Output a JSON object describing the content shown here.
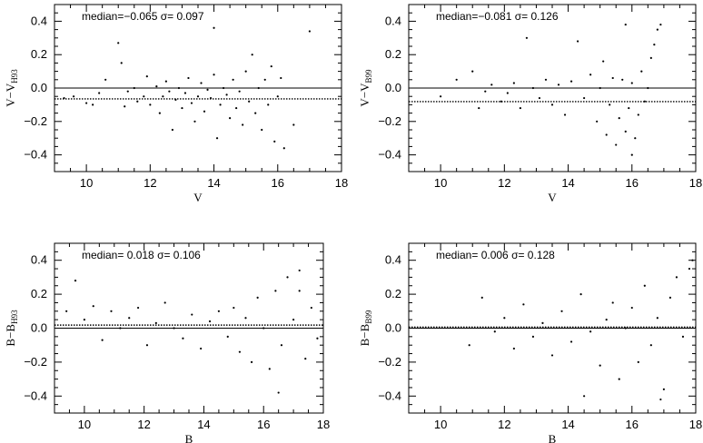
{
  "chart_data": [
    {
      "type": "scatter",
      "xlabel": "V",
      "ylabel": "V−V",
      "ylabel_sub": "H93",
      "stats": "median=−0.065   σ=  0.097",
      "median": -0.065,
      "sigma": 0.097,
      "xlim": [
        9,
        18
      ],
      "ylim": [
        -0.5,
        0.5
      ],
      "xticks": [
        10,
        12,
        14,
        16,
        18
      ],
      "yticks": [
        -0.4,
        -0.2,
        0.0,
        0.2,
        0.4
      ],
      "xtick_labels": [
        "10",
        "12",
        "14",
        "16",
        "18"
      ],
      "ytick_labels": [
        "−0.4",
        "−0.2",
        "0.0",
        "0.2",
        "0.4"
      ],
      "points": [
        [
          9.3,
          -0.06
        ],
        [
          9.6,
          -0.05
        ],
        [
          10.0,
          -0.09
        ],
        [
          10.2,
          -0.1
        ],
        [
          10.4,
          -0.03
        ],
        [
          10.6,
          0.05
        ],
        [
          11.0,
          0.27
        ],
        [
          11.1,
          0.15
        ],
        [
          11.2,
          -0.11
        ],
        [
          11.3,
          -0.02
        ],
        [
          11.5,
          0.0
        ],
        [
          11.6,
          -0.08
        ],
        [
          11.8,
          -0.05
        ],
        [
          11.9,
          0.07
        ],
        [
          12.0,
          -0.1
        ],
        [
          12.2,
          0.01
        ],
        [
          12.3,
          -0.15
        ],
        [
          12.4,
          -0.05
        ],
        [
          12.5,
          0.04
        ],
        [
          12.6,
          -0.02
        ],
        [
          12.7,
          -0.25
        ],
        [
          12.8,
          -0.07
        ],
        [
          12.9,
          0.0
        ],
        [
          13.0,
          -0.12
        ],
        [
          13.1,
          -0.03
        ],
        [
          13.2,
          0.06
        ],
        [
          13.3,
          -0.09
        ],
        [
          13.4,
          -0.2
        ],
        [
          13.5,
          -0.05
        ],
        [
          13.6,
          0.03
        ],
        [
          13.7,
          -0.14
        ],
        [
          13.8,
          -0.01
        ],
        [
          13.9,
          -0.06
        ],
        [
          14.0,
          0.08
        ],
        [
          14.1,
          -0.3
        ],
        [
          14.2,
          -0.1
        ],
        [
          14.3,
          0.0
        ],
        [
          14.4,
          -0.04
        ],
        [
          14.5,
          -0.18
        ],
        [
          14.6,
          0.05
        ],
        [
          14.7,
          -0.12
        ],
        [
          14.8,
          -0.02
        ],
        [
          14.9,
          -0.22
        ],
        [
          15.0,
          0.1
        ],
        [
          15.1,
          -0.08
        ],
        [
          15.2,
          0.2
        ],
        [
          15.3,
          -0.15
        ],
        [
          15.4,
          0.0
        ],
        [
          15.5,
          -0.25
        ],
        [
          15.6,
          0.05
        ],
        [
          15.7,
          -0.1
        ],
        [
          15.8,
          0.13
        ],
        [
          15.9,
          -0.32
        ],
        [
          16.0,
          -0.05
        ],
        [
          16.1,
          0.06
        ],
        [
          16.2,
          -0.36
        ],
        [
          16.5,
          -0.22
        ],
        [
          17.0,
          0.34
        ],
        [
          14.0,
          0.36
        ]
      ]
    },
    {
      "type": "scatter",
      "xlabel": "V",
      "ylabel": "V−V",
      "ylabel_sub": "B99",
      "stats": "median=−0.081   σ=  0.126",
      "median": -0.081,
      "sigma": 0.126,
      "xlim": [
        9,
        18
      ],
      "ylim": [
        -0.5,
        0.5
      ],
      "xticks": [
        10,
        12,
        14,
        16,
        18
      ],
      "yticks": [
        -0.4,
        -0.2,
        0.0,
        0.2,
        0.4
      ],
      "xtick_labels": [
        "10",
        "12",
        "14",
        "16",
        "18"
      ],
      "ytick_labels": [
        "−0.4",
        "−0.2",
        "0.0",
        "0.2",
        "0.4"
      ],
      "points": [
        [
          10.0,
          -0.05
        ],
        [
          10.5,
          0.05
        ],
        [
          11.0,
          0.1
        ],
        [
          11.2,
          -0.12
        ],
        [
          11.4,
          -0.02
        ],
        [
          11.6,
          0.02
        ],
        [
          11.9,
          -0.08
        ],
        [
          12.1,
          -0.03
        ],
        [
          12.3,
          0.03
        ],
        [
          12.5,
          -0.12
        ],
        [
          12.7,
          0.3
        ],
        [
          12.9,
          0.0
        ],
        [
          13.1,
          -0.06
        ],
        [
          13.3,
          0.05
        ],
        [
          13.5,
          -0.1
        ],
        [
          13.7,
          0.02
        ],
        [
          13.9,
          -0.16
        ],
        [
          14.1,
          0.04
        ],
        [
          14.3,
          0.28
        ],
        [
          14.5,
          -0.06
        ],
        [
          14.7,
          0.08
        ],
        [
          14.9,
          -0.2
        ],
        [
          15.0,
          0.0
        ],
        [
          15.1,
          0.16
        ],
        [
          15.2,
          -0.28
        ],
        [
          15.3,
          -0.1
        ],
        [
          15.4,
          0.06
        ],
        [
          15.5,
          -0.34
        ],
        [
          15.6,
          -0.18
        ],
        [
          15.7,
          0.05
        ],
        [
          15.8,
          -0.26
        ],
        [
          15.9,
          -0.12
        ],
        [
          16.0,
          0.03
        ],
        [
          16.1,
          -0.3
        ],
        [
          16.2,
          -0.16
        ],
        [
          16.3,
          0.1
        ],
        [
          16.4,
          -0.08
        ],
        [
          16.5,
          0.0
        ],
        [
          16.6,
          0.18
        ],
        [
          16.7,
          0.26
        ],
        [
          16.8,
          0.35
        ],
        [
          16.9,
          0.38
        ],
        [
          15.8,
          0.38
        ],
        [
          16.0,
          -0.4
        ]
      ]
    },
    {
      "type": "scatter",
      "xlabel": "B",
      "ylabel": "B−B",
      "ylabel_sub": "H93",
      "stats": "median=  0.018   σ=  0.106",
      "median": 0.018,
      "sigma": 0.106,
      "xlim": [
        9,
        18
      ],
      "ylim": [
        -0.5,
        0.5
      ],
      "xticks": [
        10,
        12,
        14,
        16,
        18
      ],
      "yticks": [
        -0.4,
        -0.2,
        0.0,
        0.2,
        0.4
      ],
      "xtick_labels": [
        "10",
        "12",
        "14",
        "16",
        "18"
      ],
      "ytick_labels": [
        "−0.4",
        "−0.2",
        "0.0",
        "0.2",
        "0.4"
      ],
      "points": [
        [
          9.4,
          0.1
        ],
        [
          9.7,
          0.28
        ],
        [
          10.0,
          0.05
        ],
        [
          10.3,
          0.13
        ],
        [
          10.6,
          -0.07
        ],
        [
          10.9,
          0.1
        ],
        [
          11.2,
          0.0
        ],
        [
          11.5,
          0.06
        ],
        [
          11.8,
          0.12
        ],
        [
          12.1,
          -0.1
        ],
        [
          12.4,
          0.03
        ],
        [
          12.7,
          0.15
        ],
        [
          13.0,
          0.0
        ],
        [
          13.3,
          -0.06
        ],
        [
          13.6,
          0.08
        ],
        [
          13.9,
          -0.12
        ],
        [
          14.2,
          0.04
        ],
        [
          14.5,
          0.1
        ],
        [
          14.8,
          -0.05
        ],
        [
          15.0,
          0.12
        ],
        [
          15.2,
          -0.14
        ],
        [
          15.4,
          0.06
        ],
        [
          15.6,
          -0.2
        ],
        [
          15.8,
          0.18
        ],
        [
          16.0,
          0.0
        ],
        [
          16.2,
          -0.24
        ],
        [
          16.4,
          0.22
        ],
        [
          16.6,
          -0.1
        ],
        [
          16.8,
          0.3
        ],
        [
          17.0,
          0.05
        ],
        [
          17.2,
          0.34
        ],
        [
          17.4,
          -0.18
        ],
        [
          17.6,
          0.12
        ],
        [
          17.8,
          -0.06
        ],
        [
          16.5,
          -0.38
        ],
        [
          17.2,
          0.22
        ]
      ]
    },
    {
      "type": "scatter",
      "xlabel": "B",
      "ylabel": "B−B",
      "ylabel_sub": "B99",
      "stats": "median=  0.006   σ=  0.128",
      "median": 0.006,
      "sigma": 0.128,
      "xlim": [
        9,
        18
      ],
      "ylim": [
        -0.5,
        0.5
      ],
      "xticks": [
        10,
        12,
        14,
        16,
        18
      ],
      "yticks": [
        -0.4,
        -0.2,
        0.0,
        0.2,
        0.4
      ],
      "xtick_labels": [
        "10",
        "12",
        "14",
        "16",
        "18"
      ],
      "ytick_labels": [
        "−0.4",
        "−0.2",
        "0.0",
        "0.2",
        "0.4"
      ],
      "points": [
        [
          10.9,
          -0.1
        ],
        [
          11.3,
          0.18
        ],
        [
          11.7,
          -0.02
        ],
        [
          12.0,
          0.06
        ],
        [
          12.3,
          -0.12
        ],
        [
          12.6,
          0.14
        ],
        [
          12.9,
          -0.05
        ],
        [
          13.2,
          0.03
        ],
        [
          13.5,
          -0.16
        ],
        [
          13.8,
          0.1
        ],
        [
          14.1,
          -0.08
        ],
        [
          14.4,
          0.2
        ],
        [
          14.7,
          -0.02
        ],
        [
          15.0,
          -0.22
        ],
        [
          15.2,
          0.05
        ],
        [
          15.4,
          0.15
        ],
        [
          15.6,
          -0.3
        ],
        [
          15.8,
          0.0
        ],
        [
          16.0,
          0.12
        ],
        [
          16.2,
          -0.2
        ],
        [
          16.4,
          0.25
        ],
        [
          16.6,
          -0.1
        ],
        [
          16.8,
          0.06
        ],
        [
          17.0,
          -0.36
        ],
        [
          17.2,
          0.18
        ],
        [
          17.4,
          0.3
        ],
        [
          17.6,
          -0.05
        ],
        [
          17.8,
          0.35
        ],
        [
          17.9,
          0.4
        ],
        [
          14.5,
          -0.4
        ],
        [
          16.9,
          -0.42
        ]
      ]
    }
  ]
}
